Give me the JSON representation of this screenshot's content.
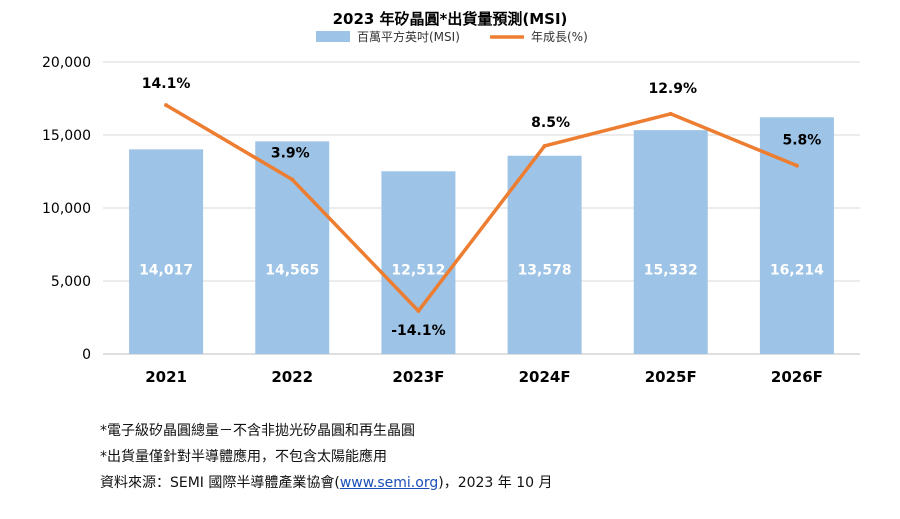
{
  "chart_data": {
    "type": "bar",
    "title": "2023 年矽晶圓*出貨量預測(MSI)",
    "categories": [
      "2021",
      "2022",
      "2023F",
      "2024F",
      "2025F",
      "2026F"
    ],
    "series": [
      {
        "name": "百萬平方英吋(MSI)",
        "type": "bar",
        "values": [
          14017,
          14565,
          12512,
          13578,
          15332,
          16214
        ],
        "labels": [
          "14,017",
          "14,565",
          "12,512",
          "13,578",
          "15,332",
          "16,214"
        ],
        "color": "#9DC3E6"
      },
      {
        "name": "年成長(%)",
        "type": "line",
        "values": [
          14.1,
          3.9,
          -14.1,
          8.5,
          12.9,
          5.8
        ],
        "labels": [
          "14.1%",
          "3.9%",
          "-14.1%",
          "8.5%",
          "12.9%",
          "5.8%"
        ],
        "color": "#ED7D31"
      }
    ],
    "yaxis": {
      "ylim": [
        0,
        20000
      ],
      "ticks": [
        0,
        5000,
        10000,
        15000,
        20000
      ],
      "tick_labels": [
        "0",
        "5,000",
        "10,000",
        "15,000",
        "20,000"
      ]
    },
    "secondary_yaxis": {
      "ylim": [
        -20,
        20
      ],
      "visible": false
    },
    "grid": true,
    "legend": "top"
  },
  "notes": [
    "*電子級矽晶圓總量－不含非拋光矽晶圓和再生晶圓",
    "*出貨量僅針對半導體應用，不包含太陽能應用"
  ],
  "source": {
    "prefix": "資料來源：SEMI 國際半導體產業協會(",
    "link": "www.semi.org",
    "suffix": ")，2023 年 10 月"
  }
}
